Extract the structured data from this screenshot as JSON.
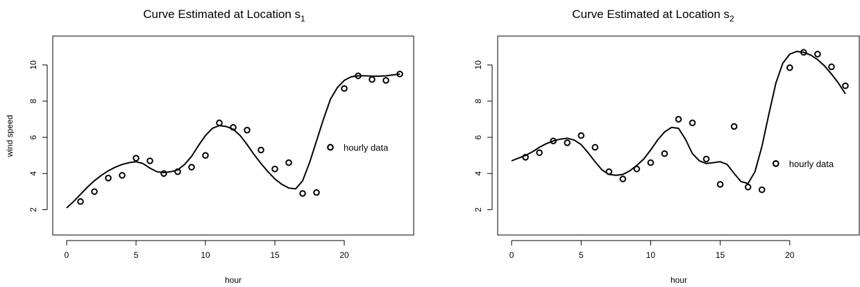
{
  "chart_data": [
    {
      "type": "scatter",
      "title": "Curve Estimated at Location s",
      "title_subscript": "1",
      "xlabel": "hour",
      "ylabel": "wind speed",
      "xlim": [
        -1,
        25
      ],
      "ylim": [
        0.6,
        11.6
      ],
      "xticks": [
        0,
        5,
        10,
        15,
        20
      ],
      "yticks": [
        2,
        4,
        6,
        8,
        10
      ],
      "grid": false,
      "legend_text": "hourly data",
      "series": [
        {
          "kind": "points",
          "x": [
            1,
            2,
            3,
            4,
            5,
            6,
            7,
            8,
            9,
            10,
            11,
            12,
            13,
            14,
            15,
            16,
            17,
            18,
            19,
            20,
            21,
            22,
            23,
            24
          ],
          "y": [
            2.45,
            3.0,
            3.75,
            3.9,
            4.85,
            4.7,
            4.0,
            4.1,
            4.35,
            5.0,
            6.8,
            6.55,
            6.4,
            5.3,
            4.25,
            4.6,
            2.9,
            2.95,
            5.45,
            8.7,
            9.4,
            9.2,
            9.15,
            9.5
          ]
        },
        {
          "kind": "curve",
          "x": [
            0,
            0.5,
            1,
            1.5,
            2,
            2.5,
            3,
            3.5,
            4,
            4.5,
            5,
            5.5,
            6,
            6.5,
            7,
            7.5,
            8,
            8.5,
            9,
            9.5,
            10,
            10.5,
            11,
            11.5,
            12,
            12.5,
            13,
            13.5,
            14,
            14.5,
            15,
            15.5,
            16,
            16.5,
            17,
            17.5,
            18,
            18.5,
            19,
            19.5,
            20,
            20.5,
            21,
            21.5,
            22,
            22.5,
            23,
            23.5,
            24
          ],
          "y": [
            2.1,
            2.45,
            2.85,
            3.25,
            3.6,
            3.9,
            4.15,
            4.35,
            4.5,
            4.6,
            4.65,
            4.55,
            4.3,
            4.1,
            4.05,
            4.1,
            4.2,
            4.5,
            4.95,
            5.55,
            6.1,
            6.5,
            6.65,
            6.6,
            6.45,
            6.1,
            5.6,
            5.05,
            4.55,
            4.1,
            3.7,
            3.4,
            3.2,
            3.15,
            3.6,
            4.6,
            5.8,
            7.0,
            8.1,
            8.75,
            9.15,
            9.35,
            9.4,
            9.4,
            9.38,
            9.38,
            9.4,
            9.45,
            9.5
          ]
        }
      ]
    },
    {
      "type": "scatter",
      "title": "Curve Estimated at Location s",
      "title_subscript": "2",
      "xlabel": "hour",
      "ylabel": "",
      "xlim": [
        -1,
        25
      ],
      "ylim": [
        0.6,
        11.6
      ],
      "xticks": [
        0,
        5,
        10,
        15,
        20
      ],
      "yticks": [
        2,
        4,
        6,
        8,
        10
      ],
      "grid": false,
      "legend_text": "hourly data",
      "series": [
        {
          "kind": "points",
          "x": [
            1,
            2,
            3,
            4,
            5,
            6,
            7,
            8,
            9,
            10,
            11,
            12,
            13,
            14,
            15,
            16,
            17,
            18,
            19,
            20,
            21,
            22,
            23,
            24
          ],
          "y": [
            4.9,
            5.15,
            5.8,
            5.7,
            6.1,
            5.45,
            4.1,
            3.7,
            4.25,
            4.6,
            5.1,
            7.0,
            6.8,
            4.8,
            3.4,
            6.6,
            3.25,
            3.1,
            4.55,
            9.85,
            10.7,
            10.6,
            9.9,
            8.85
          ]
        },
        {
          "kind": "curve",
          "x": [
            0,
            0.5,
            1,
            1.5,
            2,
            2.5,
            3,
            3.5,
            4,
            4.5,
            5,
            5.5,
            6,
            6.5,
            7,
            7.5,
            8,
            8.5,
            9,
            9.5,
            10,
            10.5,
            11,
            11.5,
            12,
            12.5,
            13,
            13.5,
            14,
            14.5,
            15,
            15.5,
            16,
            16.5,
            17,
            17.5,
            18,
            18.5,
            19,
            19.5,
            20,
            20.5,
            21,
            21.5,
            22,
            22.5,
            23,
            23.5,
            24
          ],
          "y": [
            4.7,
            4.85,
            5.0,
            5.2,
            5.45,
            5.65,
            5.8,
            5.9,
            5.95,
            5.85,
            5.6,
            5.15,
            4.65,
            4.2,
            3.95,
            3.9,
            3.95,
            4.15,
            4.45,
            4.8,
            5.3,
            5.85,
            6.3,
            6.55,
            6.5,
            5.9,
            5.1,
            4.7,
            4.55,
            4.6,
            4.65,
            4.5,
            4.0,
            3.55,
            3.45,
            4.1,
            5.5,
            7.3,
            9.0,
            10.1,
            10.6,
            10.75,
            10.7,
            10.55,
            10.3,
            9.95,
            9.5,
            9.0,
            8.4
          ]
        }
      ]
    }
  ]
}
